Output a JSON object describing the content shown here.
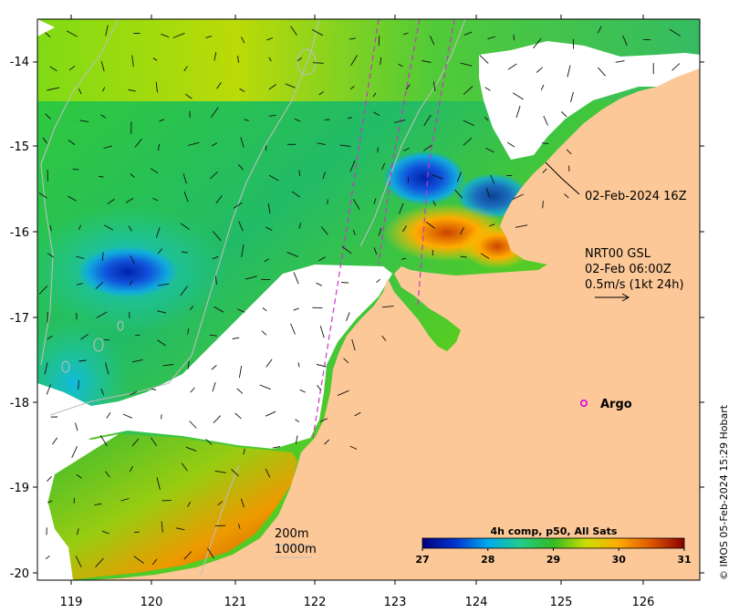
{
  "map": {
    "x_ticks": [
      "119",
      "120",
      "121",
      "122",
      "123",
      "124",
      "125",
      "126"
    ],
    "y_ticks": [
      "-14",
      "-15",
      "-16",
      "-17",
      "-18",
      "-19",
      "-20"
    ],
    "colors": {
      "land": "#fcc898",
      "cloud": "#ffffff",
      "frame": "#000000",
      "track": "#cc33cc",
      "contour": "#bdbdbd",
      "argo": "#dd00dd"
    }
  },
  "annotations": {
    "pass_time": "02-Feb-2024 16Z",
    "current_model": "NRT00 GSL",
    "current_time": "02-Feb 06:00Z",
    "current_scale": "0.5m/s (1kt 24h)",
    "argo_label": "Argo",
    "depth_200": "200m",
    "depth_1000": "1000m"
  },
  "colorbar": {
    "title": "4h comp, p50, All Sats",
    "ticks": [
      "27",
      "28",
      "29",
      "30",
      "31"
    ],
    "min": 27,
    "max": 31,
    "stops": [
      "#00007f",
      "#0033cc",
      "#00aaee",
      "#22cc88",
      "#33bb22",
      "#ccdd00",
      "#ffaa00",
      "#dd5500",
      "#880000"
    ]
  },
  "credit": "© IMOS 05-Feb-2024 15:29 Hobart"
}
